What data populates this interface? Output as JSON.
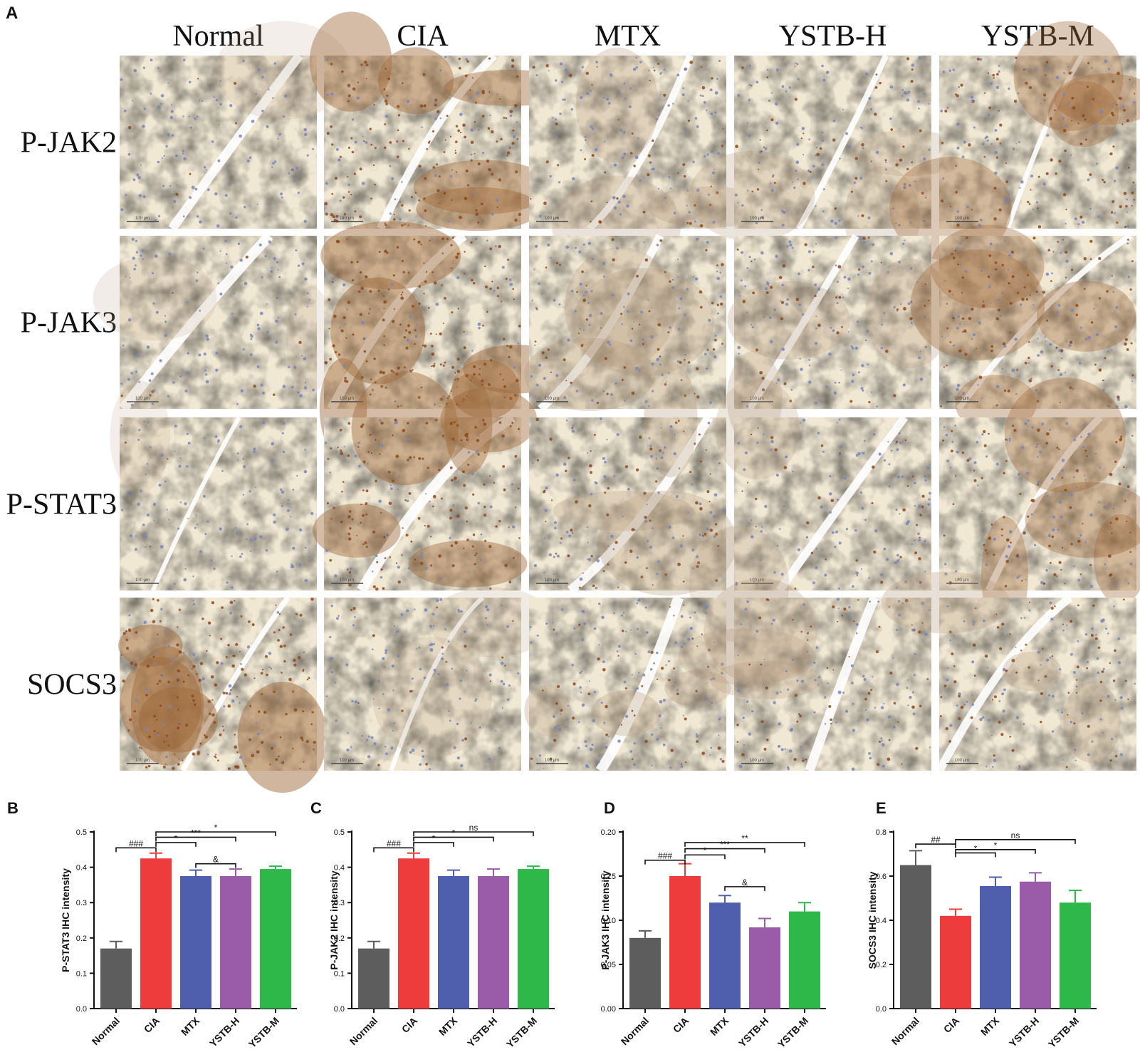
{
  "panel_a": {
    "letter": "A",
    "columns": [
      "Normal",
      "CIA",
      "MTX",
      "YSTB-H",
      "YSTB-M"
    ],
    "rows": [
      "P-JAK2",
      "P-JAK3",
      "P-STAT3",
      "SOCS3"
    ],
    "scale_bar_label": "100 μm",
    "colors": {
      "stroma": "#f1e8d4",
      "nuclei": "#7a85b8",
      "dab": "#8c4a1f"
    },
    "intensity": [
      [
        0.05,
        0.75,
        0.35,
        0.3,
        0.55
      ],
      [
        0.1,
        0.8,
        0.4,
        0.35,
        0.55
      ],
      [
        0.05,
        0.75,
        0.4,
        0.25,
        0.55
      ],
      [
        0.85,
        0.15,
        0.4,
        0.35,
        0.4
      ]
    ]
  },
  "chart_data": [
    {
      "type": "bar",
      "panel": "B",
      "ylabel": "P-STAT3 IHC intensity",
      "categories": [
        "Normal",
        "CIA",
        "MTX",
        "YSTB-H",
        "YSTB-M"
      ],
      "values": [
        0.17,
        0.425,
        0.375,
        0.375,
        0.395
      ],
      "errors": [
        0.02,
        0.015,
        0.017,
        0.02,
        0.008
      ],
      "colors": [
        "#5d5d5d",
        "#ee3b3b",
        "#4f5fae",
        "#9a5ba8",
        "#2fb84a"
      ],
      "ylim": [
        0,
        0.5
      ],
      "yticks": [
        "0.0",
        "0.1",
        "0.2",
        "0.3",
        "0.4",
        "0.5"
      ],
      "annotations": [
        {
          "from": 0,
          "to": 1,
          "y": 0.455,
          "label": "###"
        },
        {
          "from": 1,
          "to": 2,
          "y": 0.47,
          "label": "*"
        },
        {
          "from": 1,
          "to": 3,
          "y": 0.485,
          "label": "***"
        },
        {
          "from": 1,
          "to": 4,
          "y": 0.5,
          "label": "*"
        },
        {
          "from": 2,
          "to": 3,
          "y": 0.41,
          "label": "&"
        }
      ]
    },
    {
      "type": "bar",
      "panel": "C",
      "ylabel": "P-JAK2 IHC intensity",
      "categories": [
        "Normal",
        "CIA",
        "MTX",
        "YSTB-H",
        "YSTB-M"
      ],
      "values": [
        0.17,
        0.425,
        0.375,
        0.375,
        0.395
      ],
      "errors": [
        0.02,
        0.015,
        0.017,
        0.02,
        0.008
      ],
      "colors": [
        "#5d5d5d",
        "#ee3b3b",
        "#4f5fae",
        "#9a5ba8",
        "#2fb84a"
      ],
      "ylim": [
        0,
        0.5
      ],
      "yticks": [
        "0.0",
        "0.1",
        "0.2",
        "0.3",
        "0.4",
        "0.5"
      ],
      "annotations": [
        {
          "from": 0,
          "to": 1,
          "y": 0.455,
          "label": "###"
        },
        {
          "from": 1,
          "to": 2,
          "y": 0.47,
          "label": "*"
        },
        {
          "from": 1,
          "to": 3,
          "y": 0.485,
          "label": "*"
        },
        {
          "from": 1,
          "to": 4,
          "y": 0.5,
          "label": "ns"
        }
      ]
    },
    {
      "type": "bar",
      "panel": "D",
      "ylabel": "P-JAK3 IHC intensity",
      "categories": [
        "Normal",
        "CIA",
        "MTX",
        "YSTB-H",
        "YSTB-M"
      ],
      "values": [
        0.08,
        0.15,
        0.12,
        0.092,
        0.11
      ],
      "errors": [
        0.008,
        0.014,
        0.008,
        0.01,
        0.01
      ],
      "colors": [
        "#5d5d5d",
        "#ee3b3b",
        "#4f5fae",
        "#9a5ba8",
        "#2fb84a"
      ],
      "ylim": [
        0,
        0.2
      ],
      "yticks": [
        "0.00",
        "0.05",
        "0.10",
        "0.15",
        "0.20"
      ],
      "annotations": [
        {
          "from": 0,
          "to": 1,
          "y": 0.168,
          "label": "###"
        },
        {
          "from": 1,
          "to": 2,
          "y": 0.174,
          "label": "*"
        },
        {
          "from": 1,
          "to": 3,
          "y": 0.181,
          "label": "***"
        },
        {
          "from": 1,
          "to": 4,
          "y": 0.188,
          "label": "**"
        },
        {
          "from": 2,
          "to": 3,
          "y": 0.138,
          "label": "&"
        }
      ]
    },
    {
      "type": "bar",
      "panel": "E",
      "ylabel": "SOCS3 IHC intensity",
      "categories": [
        "Normal",
        "CIA",
        "MTX",
        "YSTB-H",
        "YSTB-M"
      ],
      "values": [
        0.65,
        0.42,
        0.555,
        0.575,
        0.48
      ],
      "errors": [
        0.065,
        0.03,
        0.04,
        0.04,
        0.055
      ],
      "colors": [
        "#5d5d5d",
        "#ee3b3b",
        "#4f5fae",
        "#9a5ba8",
        "#2fb84a"
      ],
      "ylim": [
        0,
        0.8
      ],
      "yticks": [
        "0.0",
        "0.2",
        "0.4",
        "0.6",
        "0.8"
      ],
      "annotations": [
        {
          "from": 0,
          "to": 1,
          "y": 0.745,
          "label": "##"
        },
        {
          "from": 1,
          "to": 2,
          "y": 0.705,
          "label": "*"
        },
        {
          "from": 1,
          "to": 3,
          "y": 0.72,
          "label": "*"
        },
        {
          "from": 1,
          "to": 4,
          "y": 0.765,
          "label": "ns"
        }
      ]
    }
  ]
}
